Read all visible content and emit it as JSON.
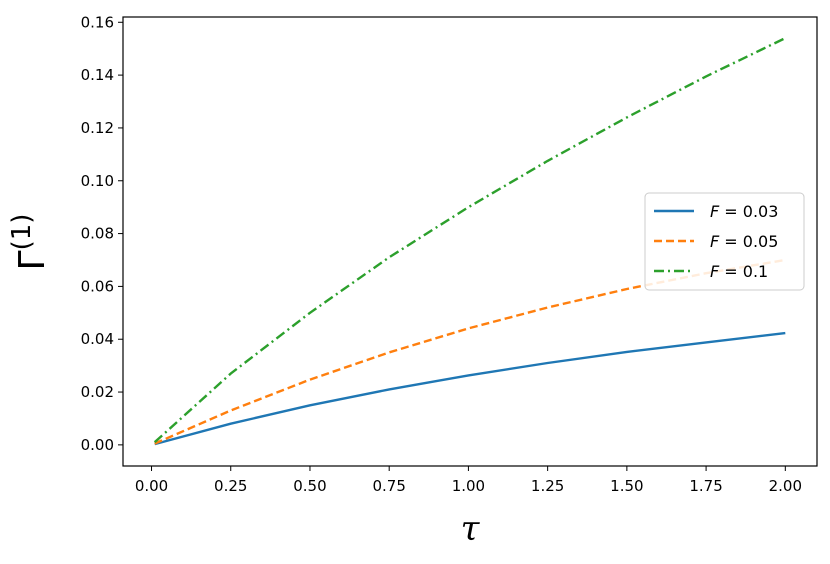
{
  "chart_data": {
    "type": "line",
    "xlabel": "τ",
    "ylabel_base": "Γ",
    "ylabel_sup": "(1)",
    "xlim": [
      -0.09,
      2.1
    ],
    "ylim": [
      -0.008,
      0.162
    ],
    "xticks": [
      0.0,
      0.25,
      0.5,
      0.75,
      1.0,
      1.25,
      1.5,
      1.75,
      2.0
    ],
    "xtick_labels": [
      "0.00",
      "0.25",
      "0.50",
      "0.75",
      "1.00",
      "1.25",
      "1.50",
      "1.75",
      "2.00"
    ],
    "yticks": [
      0.0,
      0.02,
      0.04,
      0.06,
      0.08,
      0.1,
      0.12,
      0.14,
      0.16
    ],
    "ytick_labels": [
      "0.00",
      "0.02",
      "0.04",
      "0.06",
      "0.08",
      "0.10",
      "0.12",
      "0.14",
      "0.16"
    ],
    "grid": false,
    "legend_position": "center-right",
    "x": [
      0.01,
      0.25,
      0.5,
      0.75,
      1.0,
      1.25,
      1.5,
      1.75,
      2.0
    ],
    "series": [
      {
        "name": "F = 0.03",
        "label_var": "F",
        "label_rest": " = 0.03",
        "color": "#1f77b4",
        "style": "solid",
        "values": [
          0.0003,
          0.008,
          0.015,
          0.021,
          0.0263,
          0.031,
          0.0352,
          0.0388,
          0.0423
        ]
      },
      {
        "name": "F = 0.05",
        "label_var": "F",
        "label_rest": " = 0.05",
        "color": "#ff7f0e",
        "style": "dashed",
        "values": [
          0.0005,
          0.013,
          0.0247,
          0.035,
          0.0441,
          0.052,
          0.059,
          0.065,
          0.07
        ]
      },
      {
        "name": "F = 0.1",
        "label_var": "F",
        "label_rest": " = 0.1",
        "color": "#2ca02c",
        "style": "dashdot",
        "values": [
          0.001,
          0.027,
          0.05,
          0.071,
          0.09,
          0.1075,
          0.124,
          0.1395,
          0.154
        ]
      }
    ]
  }
}
